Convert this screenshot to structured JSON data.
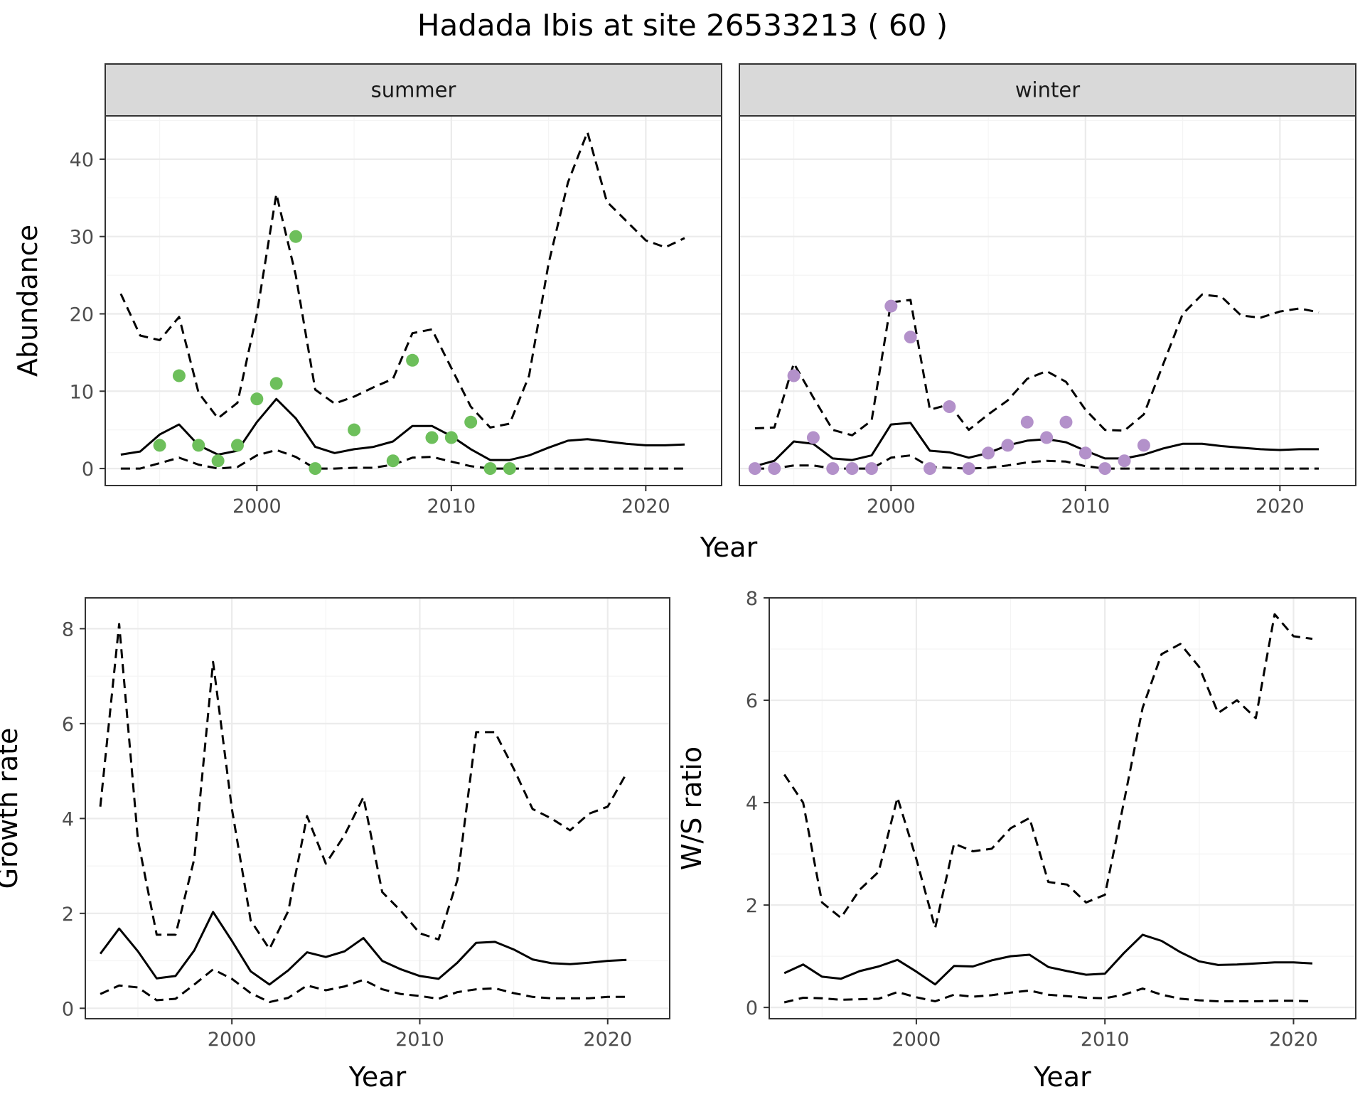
{
  "figure": {
    "title": "Hadada Ibis at site 26533213 ( 60 )"
  },
  "chart_data": [
    {
      "type": "line",
      "panel": "summer",
      "strip_label": "summer",
      "xlabel": "Year",
      "ylabel": "Abundance",
      "xlim": [
        1992.2,
        2023.9
      ],
      "ylim": [
        -2.2,
        45.6
      ],
      "xticks": [
        2000,
        2010,
        2020
      ],
      "yticks": [
        0,
        10,
        20,
        30,
        40
      ],
      "grid": true,
      "point_color": "#6dbf5b",
      "x": [
        1993,
        1994,
        1995,
        1996,
        1997,
        1998,
        1999,
        2000,
        2001,
        2002,
        2003,
        2004,
        2005,
        2006,
        2007,
        2008,
        2009,
        2010,
        2011,
        2012,
        2013,
        2014,
        2015,
        2016,
        2017,
        2018,
        2019,
        2020,
        2021,
        2022
      ],
      "series": [
        {
          "style": "solid",
          "values": [
            1.8,
            2.2,
            4.4,
            5.7,
            3.0,
            1.8,
            2.3,
            6.0,
            9.0,
            6.5,
            2.8,
            2.0,
            2.5,
            2.8,
            3.5,
            5.5,
            5.5,
            4.2,
            2.5,
            1.1,
            1.1,
            1.7,
            2.7,
            3.6,
            3.8,
            3.5,
            3.2,
            3.0,
            3.0,
            3.1
          ]
        },
        {
          "style": "dashed",
          "values": [
            0,
            0,
            0.7,
            1.4,
            0.5,
            0,
            0.2,
            1.7,
            2.4,
            1.5,
            0,
            0,
            0.1,
            0.1,
            0.5,
            1.4,
            1.5,
            0.9,
            0.3,
            0,
            0,
            0,
            0,
            0,
            0,
            0,
            0,
            0,
            0,
            0
          ]
        },
        {
          "style": "dashed",
          "values": [
            22.6,
            17.2,
            16.6,
            19.6,
            9.8,
            6.5,
            8.5,
            20.0,
            35.5,
            25.0,
            10.2,
            8.4,
            9.3,
            10.5,
            11.6,
            17.5,
            18.0,
            13.0,
            8.0,
            5.3,
            5.8,
            12.0,
            26.5,
            37.0,
            43.5,
            34.5,
            32.0,
            29.5,
            28.6,
            29.8
          ]
        }
      ],
      "points": {
        "x": [
          1995,
          1996,
          1997,
          1998,
          1999,
          2000,
          2001,
          2002,
          2003,
          2005,
          2007,
          2008,
          2009,
          2010,
          2011,
          2012,
          2013
        ],
        "y": [
          3,
          12,
          3,
          1,
          3,
          9,
          11,
          30,
          0,
          5,
          1,
          14,
          4,
          4,
          6,
          0,
          0
        ]
      }
    },
    {
      "type": "line",
      "panel": "winter",
      "strip_label": "winter",
      "xlabel": "Year",
      "ylabel": "Abundance",
      "xlim": [
        1992.2,
        2023.9
      ],
      "ylim": [
        -2.2,
        45.6
      ],
      "xticks": [
        2000,
        2010,
        2020
      ],
      "yticks": [
        0,
        10,
        20,
        30,
        40
      ],
      "grid": true,
      "point_color": "#b391ca",
      "x": [
        1993,
        1994,
        1995,
        1996,
        1997,
        1998,
        1999,
        2000,
        2001,
        2002,
        2003,
        2004,
        2005,
        2006,
        2007,
        2008,
        2009,
        2010,
        2011,
        2012,
        2013,
        2014,
        2015,
        2016,
        2017,
        2018,
        2019,
        2020,
        2021,
        2022
      ],
      "series": [
        {
          "style": "solid",
          "values": [
            0.3,
            1.0,
            3.5,
            3.2,
            1.3,
            1.1,
            1.7,
            5.7,
            5.9,
            2.3,
            2.1,
            1.4,
            2.0,
            3.0,
            3.6,
            3.8,
            3.4,
            2.3,
            1.3,
            1.3,
            1.8,
            2.6,
            3.2,
            3.2,
            2.9,
            2.7,
            2.5,
            2.4,
            2.5,
            2.5
          ]
        },
        {
          "style": "dashed",
          "values": [
            0,
            0,
            0.4,
            0.4,
            0,
            0,
            0,
            1.4,
            1.7,
            0.2,
            0.1,
            0,
            0.1,
            0.4,
            0.8,
            1.0,
            0.9,
            0.3,
            0,
            0,
            0,
            0,
            0,
            0,
            0,
            0,
            0,
            0,
            0,
            0
          ]
        },
        {
          "style": "dashed",
          "values": [
            5.2,
            5.3,
            13.6,
            9.2,
            5.0,
            4.3,
            6.2,
            21.5,
            21.8,
            7.6,
            8.3,
            5.0,
            7.0,
            8.8,
            11.6,
            12.6,
            11.2,
            7.6,
            5.0,
            4.9,
            7.0,
            13.5,
            20.0,
            22.5,
            22.2,
            19.8,
            19.5,
            20.3,
            20.7,
            20.2
          ]
        }
      ],
      "points": {
        "x": [
          1993,
          1994,
          1995,
          1996,
          1997,
          1998,
          1999,
          2000,
          2001,
          2002,
          2003,
          2004,
          2005,
          2006,
          2007,
          2008,
          2009,
          2010,
          2011,
          2012,
          2013
        ],
        "y": [
          0,
          0,
          12,
          4,
          0,
          0,
          0,
          21,
          17,
          0,
          8,
          0,
          2,
          3,
          6,
          4,
          6,
          2,
          0,
          1,
          3
        ]
      }
    },
    {
      "type": "line",
      "panel": "growth",
      "xlabel": "Year",
      "ylabel": "Growth rate",
      "xlim": [
        1992.2,
        2023.3
      ],
      "ylim": [
        -0.22,
        8.65
      ],
      "xticks": [
        2000,
        2010,
        2020
      ],
      "yticks": [
        0,
        2,
        4,
        6,
        8
      ],
      "grid": true,
      "x": [
        1993,
        1994,
        1995,
        1996,
        1997,
        1998,
        1999,
        2000,
        2001,
        2002,
        2003,
        2004,
        2005,
        2006,
        2007,
        2008,
        2009,
        2010,
        2011,
        2012,
        2013,
        2014,
        2015,
        2016,
        2017,
        2018,
        2019,
        2020,
        2021
      ],
      "series": [
        {
          "style": "solid",
          "values": [
            1.15,
            1.68,
            1.2,
            0.63,
            0.68,
            1.22,
            2.03,
            1.42,
            0.78,
            0.5,
            0.8,
            1.18,
            1.08,
            1.2,
            1.48,
            1.0,
            0.82,
            0.68,
            0.62,
            0.96,
            1.38,
            1.4,
            1.24,
            1.03,
            0.95,
            0.93,
            0.96,
            1.0,
            1.02
          ]
        },
        {
          "style": "dashed",
          "values": [
            0.3,
            0.48,
            0.44,
            0.17,
            0.2,
            0.5,
            0.82,
            0.62,
            0.32,
            0.13,
            0.22,
            0.48,
            0.38,
            0.46,
            0.6,
            0.4,
            0.3,
            0.26,
            0.2,
            0.34,
            0.4,
            0.42,
            0.32,
            0.24,
            0.21,
            0.21,
            0.21,
            0.24,
            0.24
          ]
        },
        {
          "style": "dashed",
          "values": [
            4.25,
            8.1,
            3.55,
            1.55,
            1.55,
            3.15,
            7.3,
            4.2,
            1.85,
            1.25,
            2.05,
            4.05,
            3.05,
            3.65,
            4.45,
            2.45,
            2.05,
            1.58,
            1.45,
            2.7,
            5.82,
            5.82,
            5.05,
            4.2,
            4.0,
            3.75,
            4.1,
            4.25,
            4.95
          ]
        }
      ]
    },
    {
      "type": "line",
      "panel": "ratio",
      "xlabel": "Year",
      "ylabel": "W/S ratio",
      "xlim": [
        1992.2,
        2023.3
      ],
      "ylim": [
        -0.22,
        8.0
      ],
      "xticks": [
        2000,
        2010,
        2020
      ],
      "yticks": [
        0,
        2,
        4,
        6,
        8
      ],
      "grid": true,
      "x": [
        1993,
        1994,
        1995,
        1996,
        1997,
        1998,
        1999,
        2000,
        2001,
        2002,
        2003,
        2004,
        2005,
        2006,
        2007,
        2008,
        2009,
        2010,
        2011,
        2012,
        2013,
        2014,
        2015,
        2016,
        2017,
        2018,
        2019,
        2020,
        2021
      ],
      "series": [
        {
          "style": "solid",
          "values": [
            0.67,
            0.84,
            0.6,
            0.56,
            0.71,
            0.8,
            0.93,
            0.7,
            0.45,
            0.81,
            0.8,
            0.92,
            1.0,
            1.03,
            0.79,
            0.71,
            0.64,
            0.66,
            1.06,
            1.42,
            1.3,
            1.08,
            0.9,
            0.83,
            0.84,
            0.86,
            0.88,
            0.88,
            0.86
          ]
        },
        {
          "style": "dashed",
          "values": [
            0.1,
            0.19,
            0.18,
            0.15,
            0.16,
            0.17,
            0.3,
            0.2,
            0.12,
            0.25,
            0.21,
            0.24,
            0.29,
            0.33,
            0.25,
            0.22,
            0.19,
            0.18,
            0.25,
            0.37,
            0.25,
            0.17,
            0.14,
            0.12,
            0.12,
            0.12,
            0.13,
            0.13,
            0.12
          ]
        },
        {
          "style": "dashed",
          "values": [
            4.55,
            4.0,
            2.05,
            1.75,
            2.3,
            2.65,
            4.1,
            2.9,
            1.55,
            3.2,
            3.05,
            3.1,
            3.5,
            3.7,
            2.45,
            2.4,
            2.05,
            2.2,
            4.0,
            5.85,
            6.9,
            7.1,
            6.65,
            5.75,
            6.0,
            5.65,
            7.68,
            7.25,
            7.2
          ]
        }
      ]
    }
  ]
}
